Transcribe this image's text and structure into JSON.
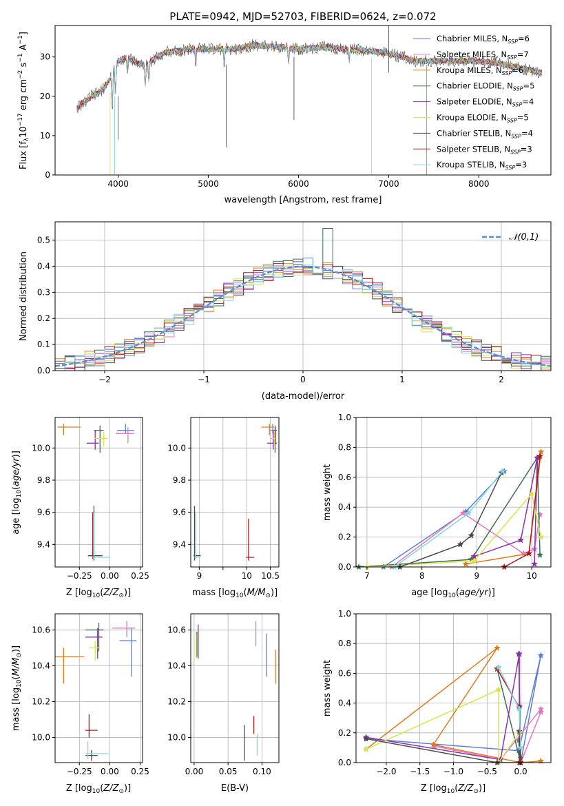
{
  "colors": {
    "Chabrier MILES": "#5b7fd6",
    "Salpeter MILES": "#e377c2",
    "Kroupa MILES": "#e07b1a",
    "Chabrier ELODIE": "#3f6f4f",
    "Salpeter ELODIE": "#8e2fb0",
    "Kroupa ELODIE": "#d4e84a",
    "Chabrier STELIB": "#4a4a4a",
    "Salpeter STELIB": "#b01a1a",
    "Kroupa STELIB": "#7fd6e0"
  },
  "chart_data": [
    {
      "type": "line",
      "title": "PLATE=0942, MJD=52703, FIBERID=0624, z=0.072",
      "xlabel": "wavelength [Angstrom, rest frame]",
      "ylabel": "Flux [f_λ10^-17 erg cm^-2 s^-1 A^-1]",
      "xlim": [
        3300,
        8800
      ],
      "ylim": [
        0,
        38
      ],
      "xticks": [
        4000,
        5000,
        6000,
        7000,
        8000
      ],
      "yticks": [
        0,
        10,
        20,
        30
      ],
      "legend_position": "top-right",
      "spectrum_shape_x": [
        3540,
        3600,
        3700,
        3800,
        3900,
        4000,
        4100,
        4200,
        4300,
        4500,
        4800,
        5000,
        5300,
        5500,
        5800,
        6000,
        6300,
        6500,
        6800,
        7000,
        7300,
        7600,
        7900,
        8200,
        8500,
        8700
      ],
      "spectrum_shape_y": [
        17,
        18,
        20,
        21,
        24,
        29,
        30,
        28.5,
        28,
        31,
        32,
        32,
        32,
        33,
        32.5,
        32,
        32.5,
        32,
        31.5,
        31,
        29,
        29,
        29,
        28.5,
        27,
        26
      ],
      "series": [
        {
          "name": "Chabrier MILES, N_SSP=6"
        },
        {
          "name": "Salpeter MILES, N_SSP=7"
        },
        {
          "name": "Kroupa MILES, N_SSP=6"
        },
        {
          "name": "Chabrier ELODIE, N_SSP=5"
        },
        {
          "name": "Salpeter ELODIE, N_SSP=4"
        },
        {
          "name": "Kroupa ELODIE, N_SSP=5"
        },
        {
          "name": "Chabrier STELIB, N_SSP=4"
        },
        {
          "name": "Salpeter STELIB, N_SSP=3"
        },
        {
          "name": "Kroupa STELIB, N_SSP=3"
        }
      ]
    },
    {
      "type": "histogram",
      "xlabel": "(data-model)/error",
      "ylabel": "Normed distribution",
      "xlim": [
        -2.5,
        2.5
      ],
      "ylim": [
        0,
        0.57
      ],
      "xticks": [
        -2,
        -1,
        0,
        1,
        2
      ],
      "yticks": [
        0.0,
        0.1,
        0.2,
        0.3,
        0.4,
        0.5
      ],
      "legend": "𝒩(0,1)",
      "legend_position": "top-right",
      "grid": true
    },
    {
      "type": "errorbar",
      "xlabel": "Z [log10(Z/Z⊙)]",
      "ylabel": "age  [log10(age/yr)]",
      "xlim": [
        -0.45,
        0.27
      ],
      "ylim": [
        9.26,
        10.19
      ],
      "xticks": [
        -0.25,
        0.0,
        0.25
      ],
      "yticks": [
        9.4,
        9.6,
        9.8,
        10.0
      ],
      "points": [
        {
          "x": 0.13,
          "y": 10.11,
          "color": "Chabrier MILES",
          "xerr": [
            0.07,
            0.07
          ],
          "yerr": [
            0.02,
            0.04
          ]
        },
        {
          "x": 0.15,
          "y": 10.09,
          "color": "Salpeter MILES",
          "xerr": [
            0.1,
            0.05
          ],
          "yerr": [
            0.06,
            0.04
          ]
        },
        {
          "x": -0.38,
          "y": 10.13,
          "color": "Kroupa MILES",
          "xerr": [
            0.05,
            0.14
          ],
          "yerr": [
            0.05,
            0.02
          ]
        },
        {
          "x": -0.08,
          "y": 10.11,
          "color": "Chabrier ELODIE",
          "xerr": [
            0.05,
            0.03
          ],
          "yerr": [
            0.14,
            0.03
          ]
        },
        {
          "x": -0.12,
          "y": 10.03,
          "color": "Salpeter ELODIE",
          "xerr": [
            0.07,
            0.03
          ],
          "yerr": [
            0.04,
            0.08
          ]
        },
        {
          "x": -0.05,
          "y": 10.06,
          "color": "Kroupa ELODIE",
          "xerr": [
            0.08,
            0.03
          ],
          "yerr": [
            0.05,
            0.04
          ]
        },
        {
          "x": -0.13,
          "y": 9.33,
          "color": "Chabrier STELIB",
          "xerr": [
            0.05,
            0.07
          ],
          "yerr": [
            0.03,
            0.31
          ]
        },
        {
          "x": -0.14,
          "y": 9.33,
          "color": "Salpeter STELIB",
          "xerr": [
            0.02,
            0.02
          ],
          "yerr": [
            0.02,
            0.27
          ]
        },
        {
          "x": -0.13,
          "y": 9.32,
          "color": "Kroupa STELIB",
          "xerr": [
            0.02,
            0.13
          ],
          "yerr": [
            0.01,
            0.28
          ]
        }
      ]
    },
    {
      "type": "errorbar",
      "xlabel": "mass [log10(M/M⊙)]",
      "ylabel": "",
      "xlim": [
        8.82,
        10.68
      ],
      "ylim": [
        9.26,
        10.19
      ],
      "xticks": [
        9.0,
        9.5,
        10.0,
        10.5
      ],
      "xticklabels": [
        "9",
        "",
        "10",
        "10.5"
      ],
      "yticks": [
        9.4,
        9.6,
        9.8,
        10.0
      ],
      "points": [
        {
          "x": 10.55,
          "y": 10.11,
          "color": "Chabrier MILES",
          "xerr": [
            0.05,
            0.05
          ],
          "yerr": [
            0.02,
            0.04
          ]
        },
        {
          "x": 10.61,
          "y": 10.09,
          "color": "Salpeter MILES",
          "xerr": [
            0.04,
            0.02
          ],
          "yerr": [
            0.06,
            0.04
          ]
        },
        {
          "x": 10.48,
          "y": 10.13,
          "color": "Kroupa MILES",
          "xerr": [
            0.17,
            0.1
          ],
          "yerr": [
            0.05,
            0.02
          ]
        },
        {
          "x": 10.6,
          "y": 10.11,
          "color": "Chabrier ELODIE",
          "xerr": [
            0.04,
            0.04
          ],
          "yerr": [
            0.14,
            0.03
          ]
        },
        {
          "x": 10.56,
          "y": 10.03,
          "color": "Salpeter ELODIE",
          "xerr": [
            0.13,
            0.08
          ],
          "yerr": [
            0.04,
            0.08
          ]
        },
        {
          "x": 10.58,
          "y": 10.06,
          "color": "Kroupa ELODIE",
          "xerr": [
            0.08,
            0.02
          ],
          "yerr": [
            0.05,
            0.04
          ]
        },
        {
          "x": 8.9,
          "y": 9.33,
          "color": "Chabrier STELIB",
          "xerr": [
            0.02,
            0.13
          ],
          "yerr": [
            0.03,
            0.31
          ]
        },
        {
          "x": 10.04,
          "y": 9.32,
          "color": "Salpeter STELIB",
          "xerr": [
            0.05,
            0.12
          ],
          "yerr": [
            0.02,
            0.24
          ]
        },
        {
          "x": 8.92,
          "y": 9.32,
          "color": "Kroupa STELIB",
          "xerr": [
            0.02,
            0.1
          ],
          "yerr": [
            0.01,
            0.28
          ]
        }
      ]
    },
    {
      "type": "line",
      "xlabel": "age  [log10(age/yr)]",
      "ylabel": "mass weight",
      "xlim": [
        6.8,
        10.35
      ],
      "ylim": [
        0,
        1.0
      ],
      "xticks": [
        7,
        8,
        9,
        10
      ],
      "yticks": [
        0.0,
        0.2,
        0.4,
        0.6,
        0.8,
        1.0
      ],
      "grid": true,
      "series": [
        {
          "color": "Chabrier MILES",
          "x": [
            7.3,
            8.8,
            9.5
          ],
          "y": [
            0.0,
            0.37,
            0.64
          ]
        },
        {
          "color": "Salpeter MILES",
          "x": [
            7.45,
            8.75,
            9.85,
            10.05,
            10.15
          ],
          "y": [
            0.0,
            0.36,
            0.09,
            0.12,
            0.35
          ]
        },
        {
          "color": "Kroupa MILES",
          "x": [
            8.8,
            9.95,
            10.17
          ],
          "y": [
            0.02,
            0.09,
            0.77
          ]
        },
        {
          "color": "Chabrier ELODIE",
          "x": [
            6.85,
            8.9,
            10.1,
            10.15
          ],
          "y": [
            0.0,
            0.05,
            0.73,
            0.08
          ]
        },
        {
          "color": "Salpeter ELODIE",
          "x": [
            8.95,
            9.8,
            10.1,
            10.05
          ],
          "y": [
            0.07,
            0.18,
            0.73,
            0.02
          ]
        },
        {
          "color": "Kroupa ELODIE",
          "x": [
            7.0,
            8.95,
            10.0,
            10.17
          ],
          "y": [
            0.0,
            0.04,
            0.49,
            0.2
          ]
        },
        {
          "color": "Chabrier STELIB",
          "x": [
            7.6,
            8.7,
            8.9,
            9.45
          ],
          "y": [
            0.0,
            0.15,
            0.21,
            0.63
          ]
        },
        {
          "color": "Salpeter STELIB",
          "x": [
            9.5,
            9.95,
            10.15
          ],
          "y": [
            0.0,
            0.09,
            0.74
          ]
        },
        {
          "color": "Kroupa STELIB",
          "x": [
            7.5,
            8.85,
            9.47
          ],
          "y": [
            0.0,
            0.36,
            0.64
          ]
        }
      ]
    },
    {
      "type": "errorbar",
      "xlabel": "Z [log10(Z/Z⊙)]",
      "ylabel": "mass [log10(M/M⊙)]",
      "xlim": [
        -0.45,
        0.27
      ],
      "ylim": [
        9.86,
        10.69
      ],
      "xticks": [
        -0.25,
        0.0,
        0.25
      ],
      "yticks": [
        10.0,
        10.2,
        10.4,
        10.6
      ],
      "points": [
        {
          "x": 0.18,
          "y": 10.54,
          "color": "Chabrier MILES",
          "xerr": [
            0.1,
            0.04
          ],
          "yerr": [
            0.2,
            0.07
          ]
        },
        {
          "x": 0.14,
          "y": 10.61,
          "color": "Salpeter MILES",
          "xerr": [
            0.12,
            0.07
          ],
          "yerr": [
            0.05,
            0.04
          ]
        },
        {
          "x": -0.38,
          "y": 10.45,
          "color": "Kroupa MILES",
          "xerr": [
            0.07,
            0.17
          ],
          "yerr": [
            0.15,
            0.05
          ]
        },
        {
          "x": -0.09,
          "y": 10.6,
          "color": "Chabrier ELODIE",
          "xerr": [
            0.11,
            0.04
          ],
          "yerr": [
            0.12,
            0.04
          ]
        },
        {
          "x": -0.1,
          "y": 10.56,
          "color": "Salpeter ELODIE",
          "xerr": [
            0.1,
            0.04
          ],
          "yerr": [
            0.12,
            0.05
          ]
        },
        {
          "x": -0.12,
          "y": 10.5,
          "color": "Kroupa ELODIE",
          "xerr": [
            0.05,
            0.04
          ],
          "yerr": [
            0.07,
            0.04
          ]
        },
        {
          "x": -0.15,
          "y": 9.9,
          "color": "Chabrier STELIB",
          "xerr": [
            0.05,
            0.05
          ],
          "yerr": [
            0.03,
            0.03
          ]
        },
        {
          "x": -0.17,
          "y": 10.04,
          "color": "Salpeter STELIB",
          "xerr": [
            0.03,
            0.07
          ],
          "yerr": [
            0.04,
            0.09
          ]
        },
        {
          "x": -0.18,
          "y": 9.91,
          "color": "Kroupa STELIB",
          "xerr": [
            0.02,
            0.17
          ],
          "yerr": [
            0.03,
            0.07
          ]
        }
      ]
    },
    {
      "type": "errorbar",
      "xlabel": "E(B-V)",
      "ylabel": "",
      "xlim": [
        -0.005,
        0.125
      ],
      "ylim": [
        9.86,
        10.69
      ],
      "xticks": [
        0.0,
        0.05,
        0.1
      ],
      "xticklabels": [
        "0.00",
        "0.05",
        "0.10"
      ],
      "yticks": [
        10.0,
        10.2,
        10.4,
        10.6
      ],
      "points": [
        {
          "x": 0.107,
          "y": 10.5,
          "color": "Chabrier MILES",
          "xerr": [
            0,
            0
          ],
          "yerr": [
            0.16,
            0.08
          ]
        },
        {
          "x": 0.091,
          "y": 10.58,
          "color": "Salpeter MILES",
          "xerr": [
            0,
            0
          ],
          "yerr": [
            0.07,
            0.07
          ]
        },
        {
          "x": 0.12,
          "y": 10.4,
          "color": "Kroupa MILES",
          "xerr": [
            0,
            0
          ],
          "yerr": [
            0.1,
            0.09
          ]
        },
        {
          "x": 0.004,
          "y": 10.52,
          "color": "Chabrier ELODIE",
          "xerr": [
            0,
            0
          ],
          "yerr": [
            0.07,
            0.07
          ]
        },
        {
          "x": 0.006,
          "y": 10.54,
          "color": "Salpeter ELODIE",
          "xerr": [
            0,
            0
          ],
          "yerr": [
            0.1,
            0.09
          ]
        },
        {
          "x": 0.003,
          "y": 10.51,
          "color": "Kroupa ELODIE",
          "xerr": [
            0,
            0
          ],
          "yerr": [
            0.07,
            0.07
          ]
        },
        {
          "x": 0.074,
          "y": 9.97,
          "color": "Chabrier STELIB",
          "xerr": [
            0,
            0
          ],
          "yerr": [
            0.1,
            0.1
          ]
        },
        {
          "x": 0.088,
          "y": 10.06,
          "color": "Salpeter STELIB",
          "xerr": [
            0,
            0
          ],
          "yerr": [
            0.04,
            0.06
          ]
        },
        {
          "x": 0.093,
          "y": 9.96,
          "color": "Kroupa STELIB",
          "xerr": [
            0,
            0
          ],
          "yerr": [
            0.06,
            0.06
          ]
        }
      ]
    },
    {
      "type": "line",
      "xlabel": "Z [log10(Z/Z⊙)]",
      "ylabel": "mass weight",
      "xlim": [
        -2.45,
        0.45
      ],
      "ylim": [
        0,
        1.0
      ],
      "xticks": [
        -2.0,
        -1.5,
        -1.0,
        -0.5,
        0.0
      ],
      "yticks": [
        0.0,
        0.2,
        0.4,
        0.6,
        0.8,
        1.0
      ],
      "grid": true,
      "series": [
        {
          "color": "Chabrier MILES",
          "x": [
            -2.3,
            -0.03,
            0.3,
            0.0,
            -0.03
          ],
          "y": [
            0.16,
            0.08,
            0.72,
            0.0,
            0.15
          ]
        },
        {
          "color": "Salpeter MILES",
          "x": [
            -1.28,
            -0.3,
            0.3,
            0.3,
            0.0
          ],
          "y": [
            0.11,
            0.02,
            0.36,
            0.34,
            0.0
          ]
        },
        {
          "color": "Kroupa MILES",
          "x": [
            -2.3,
            -0.35,
            -1.3,
            0.0,
            0.3
          ],
          "y": [
            0.09,
            0.77,
            0.12,
            0.0,
            0.01
          ]
        },
        {
          "color": "Chabrier ELODIE",
          "x": [
            -0.35,
            0.0,
            -0.03,
            0.0
          ],
          "y": [
            0.63,
            0.0,
            0.73,
            0.03
          ]
        },
        {
          "color": "Salpeter ELODIE",
          "x": [
            -2.3,
            -0.3,
            -0.02,
            -0.02
          ],
          "y": [
            0.17,
            0.02,
            0.73,
            0.38
          ]
        },
        {
          "color": "Kroupa ELODIE",
          "x": [
            -2.3,
            -0.33,
            -0.33,
            -0.02
          ],
          "y": [
            0.09,
            0.49,
            0.0,
            0.2
          ]
        },
        {
          "color": "Chabrier STELIB",
          "x": [
            -2.3,
            -0.35,
            -0.02,
            -0.02
          ],
          "y": [
            0.16,
            0.0,
            0.0,
            0.21
          ]
        },
        {
          "color": "Salpeter STELIB",
          "x": [
            -0.35,
            -0.02,
            0.0
          ],
          "y": [
            0.63,
            0.37,
            0.0
          ]
        },
        {
          "color": "Kroupa STELIB",
          "x": [
            -0.33,
            -0.02,
            0.0
          ],
          "y": [
            0.64,
            0.36,
            0.1
          ]
        }
      ]
    }
  ]
}
